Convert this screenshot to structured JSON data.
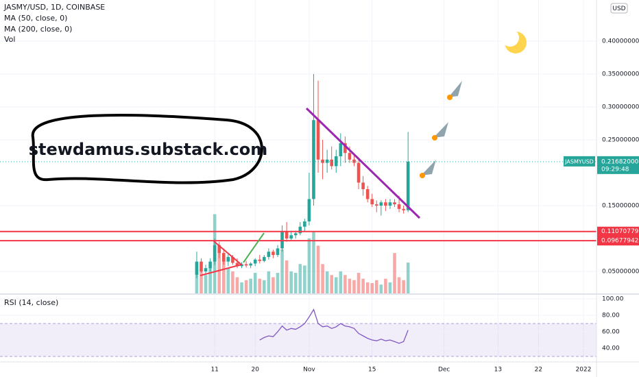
{
  "chart_data": [
    {
      "type": "candlestick",
      "title": "JASMY/USD, 1D, COINBASE",
      "indicators": [
        "MA (50, close, 0)",
        "MA (200, close, 0)",
        "Vol"
      ],
      "currency": "USD",
      "open": [
        0.045,
        0.065,
        0.05,
        0.055,
        0.065,
        0.09,
        0.078,
        0.065,
        0.072,
        0.063,
        0.058,
        0.061,
        0.059,
        0.062,
        0.068,
        0.066,
        0.072,
        0.08,
        0.075,
        0.085,
        0.11,
        0.1,
        0.105,
        0.108,
        0.118,
        0.126,
        0.16,
        0.28,
        0.22,
        0.215,
        0.22,
        0.21,
        0.225,
        0.245,
        0.23,
        0.22,
        0.215,
        0.185,
        0.175,
        0.16,
        0.152,
        0.15,
        0.155,
        0.15,
        0.155,
        0.152,
        0.145,
        0.143
      ],
      "high": [
        0.08,
        0.07,
        0.06,
        0.07,
        0.1,
        0.095,
        0.085,
        0.078,
        0.075,
        0.07,
        0.064,
        0.066,
        0.064,
        0.07,
        0.075,
        0.075,
        0.085,
        0.083,
        0.09,
        0.12,
        0.125,
        0.112,
        0.112,
        0.125,
        0.13,
        0.2,
        0.35,
        0.34,
        0.25,
        0.235,
        0.24,
        0.235,
        0.26,
        0.255,
        0.24,
        0.228,
        0.22,
        0.195,
        0.18,
        0.168,
        0.158,
        0.158,
        0.16,
        0.16,
        0.16,
        0.165,
        0.15,
        0.262
      ],
      "low": [
        0.04,
        0.048,
        0.045,
        0.05,
        0.06,
        0.07,
        0.06,
        0.058,
        0.06,
        0.055,
        0.055,
        0.056,
        0.055,
        0.058,
        0.062,
        0.064,
        0.068,
        0.07,
        0.072,
        0.08,
        0.095,
        0.098,
        0.1,
        0.105,
        0.11,
        0.12,
        0.15,
        0.2,
        0.19,
        0.2,
        0.205,
        0.2,
        0.21,
        0.215,
        0.215,
        0.21,
        0.175,
        0.165,
        0.155,
        0.148,
        0.14,
        0.135,
        0.142,
        0.145,
        0.148,
        0.14,
        0.138,
        0.14
      ],
      "close": [
        0.065,
        0.05,
        0.055,
        0.065,
        0.09,
        0.078,
        0.065,
        0.072,
        0.063,
        0.058,
        0.061,
        0.059,
        0.062,
        0.068,
        0.066,
        0.072,
        0.08,
        0.075,
        0.085,
        0.11,
        0.1,
        0.105,
        0.108,
        0.118,
        0.126,
        0.16,
        0.28,
        0.22,
        0.215,
        0.22,
        0.21,
        0.225,
        0.245,
        0.23,
        0.22,
        0.215,
        0.185,
        0.175,
        0.16,
        0.152,
        0.15,
        0.155,
        0.15,
        0.155,
        0.152,
        0.145,
        0.143,
        0.2168
      ],
      "volume": [
        40,
        30,
        25,
        35,
        108,
        60,
        45,
        35,
        30,
        22,
        15,
        18,
        20,
        28,
        20,
        18,
        30,
        22,
        28,
        60,
        45,
        30,
        28,
        40,
        38,
        75,
        85,
        65,
        40,
        30,
        25,
        22,
        30,
        25,
        20,
        18,
        28,
        20,
        15,
        14,
        18,
        12,
        20,
        15,
        55,
        22,
        18,
        42
      ],
      "vlim": [
        0,
        400
      ],
      "up_color": "#26a69a",
      "down_color": "#ef5350",
      "ylim": [
        0.01667,
        0.4625
      ],
      "yticks": [
        {
          "value": 0.05,
          "label": "0.05000000"
        },
        {
          "value": 0.15,
          "label": "0.15000000"
        },
        {
          "value": 0.25,
          "label": "0.25000000"
        },
        {
          "value": 0.3,
          "label": "0.30000000"
        },
        {
          "value": 0.35,
          "label": "0.35000000"
        },
        {
          "value": 0.4,
          "label": "0.40000000"
        }
      ],
      "xlim": [
        -43.75,
        88.9
      ],
      "xticks": [
        {
          "value": 4,
          "label": "11"
        },
        {
          "value": 13,
          "label": "20"
        },
        {
          "value": 25,
          "label": "Nov"
        },
        {
          "value": 39,
          "label": "15"
        },
        {
          "value": 55,
          "label": "Dec"
        },
        {
          "value": 67,
          "label": "13"
        },
        {
          "value": 76,
          "label": "22"
        },
        {
          "value": 86,
          "label": "2022"
        }
      ],
      "levels": [
        {
          "value": 0.11070779,
          "label": "0.11070779",
          "color": "#f23645"
        },
        {
          "value": 0.09677942,
          "label": "0.09677942",
          "color": "#f23645"
        }
      ],
      "last": {
        "name": "JASMYUSD",
        "value": 0.21682,
        "label": "0.21682000",
        "countdown": "09:29:48"
      },
      "annotation": "stewdamus.substack.com",
      "grid": true
    },
    {
      "type": "line",
      "title": "RSI (14, close)",
      "color": "#7e57c2",
      "values": [
        null,
        null,
        null,
        null,
        null,
        null,
        null,
        null,
        null,
        null,
        null,
        null,
        null,
        null,
        50,
        53,
        55,
        54,
        60,
        67,
        62,
        64,
        63,
        66,
        70,
        78,
        87,
        70,
        66,
        67,
        64,
        66,
        70,
        67,
        66,
        64,
        58,
        55,
        52,
        50,
        49,
        51,
        49,
        50,
        48,
        46,
        48,
        62
      ],
      "ylim": [
        23.33,
        105
      ],
      "yticks": [
        {
          "value": 100,
          "label": "100.00"
        },
        {
          "value": 80,
          "label": "80.00"
        },
        {
          "value": 60,
          "label": "60.00"
        },
        {
          "value": 40,
          "label": "40.00"
        }
      ],
      "bands": [
        30,
        70
      ]
    }
  ]
}
